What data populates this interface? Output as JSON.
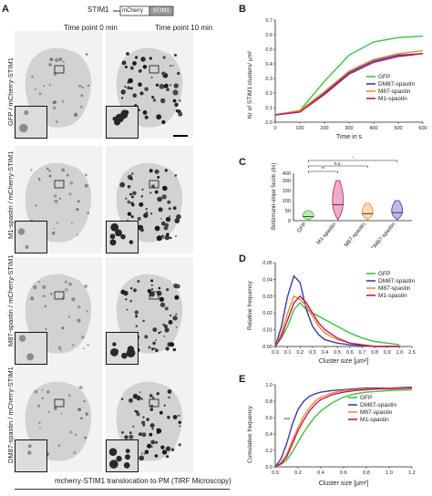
{
  "panelA": {
    "letter": "A",
    "construct": {
      "name": "STIM1",
      "box1": "mCherry",
      "box2": "STIM1"
    },
    "col_headers": [
      "Time point 0 min",
      "Time point 10 min"
    ],
    "rows": [
      "GFP / mCherry-STIM1",
      "M1-spastin / mCherry-STIM1",
      "M87-spastin / mCherry-STIM1",
      "DM87-spastin / mCherry-STIM1"
    ],
    "caption": "mcherry-STIM1 translocation to PM  (TIRF Microscopy)"
  },
  "panelB": {
    "letter": "B",
    "chart_data": {
      "type": "line",
      "ylabel": "Nr of STIM1 clusters/ µm²",
      "xlabel": "Time in s",
      "x": [
        0,
        100,
        200,
        300,
        400,
        500,
        600
      ],
      "xlim": [
        0,
        600
      ],
      "ylim": [
        0,
        0.7
      ],
      "yticks": [
        "0.0",
        "0.1",
        "0.2",
        "0.3",
        "0.4",
        "0.5",
        "0.6",
        "0.7"
      ],
      "xticks": [
        "0",
        "100",
        "200",
        "300",
        "400",
        "500",
        "600"
      ],
      "series": [
        {
          "name": "GFP",
          "color": "#3cc23c",
          "values": [
            0.05,
            0.08,
            0.28,
            0.46,
            0.55,
            0.58,
            0.59
          ]
        },
        {
          "name": "DM87-spastin",
          "color": "#3a3ab8",
          "values": [
            0.05,
            0.07,
            0.2,
            0.34,
            0.42,
            0.46,
            0.47
          ]
        },
        {
          "name": "M87-spastin",
          "color": "#f08c2a",
          "values": [
            0.05,
            0.08,
            0.21,
            0.35,
            0.43,
            0.47,
            0.49
          ]
        },
        {
          "name": "M1-spastin",
          "color": "#c2185b",
          "values": [
            0.05,
            0.07,
            0.19,
            0.33,
            0.41,
            0.45,
            0.47
          ]
        }
      ],
      "legend": "bottom-right"
    }
  },
  "panelC": {
    "letter": "C",
    "chart_data": {
      "type": "violin",
      "ylabel": "Boltzmann-slope facotr (dx)",
      "categories": [
        "GFP",
        "M1-spastin",
        "M87-spastin",
        "DM87-spastin"
      ],
      "colors": [
        "#3cc23c",
        "#c2185b",
        "#f08c2a",
        "#3a3ab8"
      ],
      "medians": [
        20,
        80,
        35,
        40
      ],
      "ylim": [
        0,
        400
      ],
      "yticks": [
        "0",
        "50",
        "100",
        "150",
        "200",
        "400"
      ],
      "significance": [
        "**",
        "n.s.",
        "n.s.",
        "*"
      ]
    }
  },
  "panelD": {
    "letter": "D",
    "chart_data": {
      "type": "line",
      "ylabel": "Relative  frequency",
      "xlabel": "Cluster size [µm²]",
      "ylim": [
        0,
        0.05
      ],
      "yticks": [
        "0.00",
        "0.01",
        "0.02",
        "0.03",
        "0.04",
        "0.05"
      ],
      "xticks": [
        "0.0",
        "0.1",
        "0.2",
        "0.3",
        "0.4",
        "0.5",
        "0.6",
        "0.7",
        "0.8",
        "0.9",
        "1.0",
        "2.5"
      ],
      "x": [
        0.0,
        0.05,
        0.1,
        0.15,
        0.2,
        0.25,
        0.3,
        0.35,
        0.4,
        0.5,
        0.6,
        0.7,
        0.8,
        0.9,
        1.0
      ],
      "series": [
        {
          "name": "GFP",
          "color": "#3cc23c",
          "values": [
            0,
            0.005,
            0.012,
            0.022,
            0.026,
            0.022,
            0.02,
            0.018,
            0.016,
            0.012,
            0.008,
            0.005,
            0.003,
            0.002,
            0.001
          ]
        },
        {
          "name": "DM87-spastin",
          "color": "#3a3ab8",
          "values": [
            0,
            0.012,
            0.03,
            0.042,
            0.038,
            0.022,
            0.012,
            0.007,
            0.004,
            0.002,
            0.001,
            0.0005,
            0,
            0,
            0
          ]
        },
        {
          "name": "M87-spastin",
          "color": "#f08c2a",
          "values": [
            0,
            0.008,
            0.02,
            0.03,
            0.028,
            0.024,
            0.018,
            0.012,
            0.008,
            0.004,
            0.002,
            0.001,
            0,
            0,
            0
          ]
        },
        {
          "name": "M1-spastin",
          "color": "#c2185b",
          "values": [
            0,
            0.006,
            0.016,
            0.026,
            0.03,
            0.026,
            0.02,
            0.014,
            0.01,
            0.005,
            0.002,
            0.001,
            0,
            0,
            0
          ]
        }
      ],
      "legend": "top-right"
    }
  },
  "panelE": {
    "letter": "E",
    "chart_data": {
      "type": "line",
      "ylabel": "Cumulative frequency",
      "xlabel": "Cluster size [µm²]",
      "ylim": [
        0,
        1.0
      ],
      "yticks": [
        "0.0",
        "0.2",
        "0.4",
        "0.6",
        "0.8",
        "1.0"
      ],
      "xticks": [
        "0.0",
        "0.2",
        "0.4",
        "0.6",
        "0.8",
        "1.0",
        "1.2"
      ],
      "annotation": "***",
      "x": [
        0.0,
        0.05,
        0.1,
        0.15,
        0.2,
        0.25,
        0.3,
        0.35,
        0.4,
        0.5,
        0.6,
        0.7,
        0.8,
        0.9,
        1.0,
        1.2
      ],
      "series": [
        {
          "name": "GFP",
          "color": "#3cc23c",
          "values": [
            0,
            0.03,
            0.08,
            0.18,
            0.3,
            0.42,
            0.52,
            0.61,
            0.68,
            0.78,
            0.85,
            0.89,
            0.91,
            0.92,
            0.93,
            0.94
          ]
        },
        {
          "name": "DM87-spastin",
          "color": "#3a3ab8",
          "values": [
            0,
            0.1,
            0.28,
            0.52,
            0.7,
            0.8,
            0.86,
            0.89,
            0.91,
            0.93,
            0.94,
            0.95,
            0.96,
            0.96,
            0.96,
            0.97
          ]
        },
        {
          "name": "M87-spastin",
          "color": "#f08c2a",
          "values": [
            0,
            0.05,
            0.15,
            0.32,
            0.48,
            0.62,
            0.72,
            0.8,
            0.85,
            0.9,
            0.93,
            0.94,
            0.95,
            0.95,
            0.96,
            0.96
          ]
        },
        {
          "name": "M1-spastin",
          "color": "#c2185b",
          "values": [
            0,
            0.04,
            0.12,
            0.28,
            0.44,
            0.57,
            0.68,
            0.76,
            0.82,
            0.88,
            0.91,
            0.93,
            0.94,
            0.95,
            0.95,
            0.96
          ]
        }
      ],
      "legend": "top-right"
    }
  }
}
